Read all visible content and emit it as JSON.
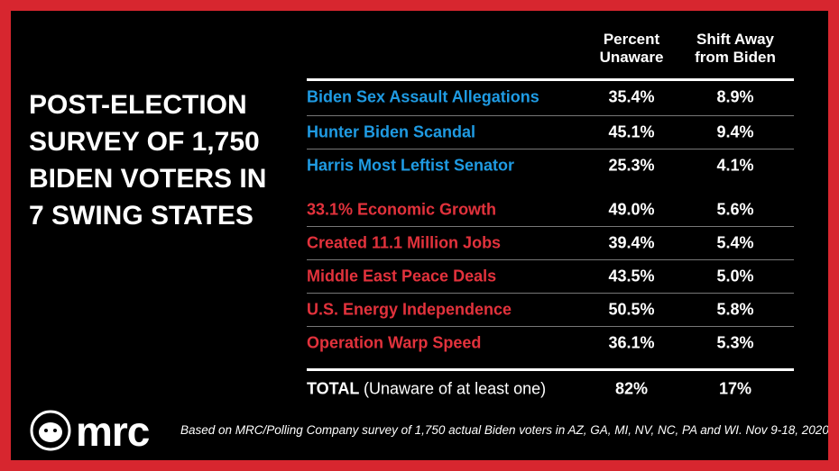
{
  "title": "POST-ELECTION SURVEY OF 1,750 BIDEN VOTERS IN 7 SWING STATES",
  "table": {
    "headers": [
      "Percent Unaware",
      "Shift Away from Biden"
    ],
    "rows": [
      {
        "label": "Biden Sex Assault Allegations",
        "percent_unaware": "35.4%",
        "shift_away": "8.9%",
        "color": "#1f9be3"
      },
      {
        "label": "Hunter Biden Scandal",
        "percent_unaware": "45.1%",
        "shift_away": "9.4%",
        "color": "#1f9be3"
      },
      {
        "label": "Harris Most Leftist Senator",
        "percent_unaware": "25.3%",
        "shift_away": "4.1%",
        "color": "#1f9be3"
      },
      {
        "label": "33.1% Economic Growth",
        "percent_unaware": "49.0%",
        "shift_away": "5.6%",
        "color": "#e2323c"
      },
      {
        "label": "Created 11.1 Million Jobs",
        "percent_unaware": "39.4%",
        "shift_away": "5.4%",
        "color": "#e2323c"
      },
      {
        "label": "Middle East Peace Deals",
        "percent_unaware": "43.5%",
        "shift_away": "5.0%",
        "color": "#e2323c"
      },
      {
        "label": "U.S. Energy Independence",
        "percent_unaware": "50.5%",
        "shift_away": "5.8%",
        "color": "#e2323c"
      },
      {
        "label": "Operation Warp Speed",
        "percent_unaware": "36.1%",
        "shift_away": "5.3%",
        "color": "#e2323c"
      }
    ],
    "total": {
      "label_bold": "TOTAL",
      "label": "(Unaware of at least one)",
      "percent_unaware": "82%",
      "shift_away": "17%"
    }
  },
  "logo": "mrc",
  "footnote": "Based on MRC/Polling Company survey of 1,750 actual Biden voters in AZ, GA, MI, NV, NC, PA and WI. Nov 9-18, 2020"
}
